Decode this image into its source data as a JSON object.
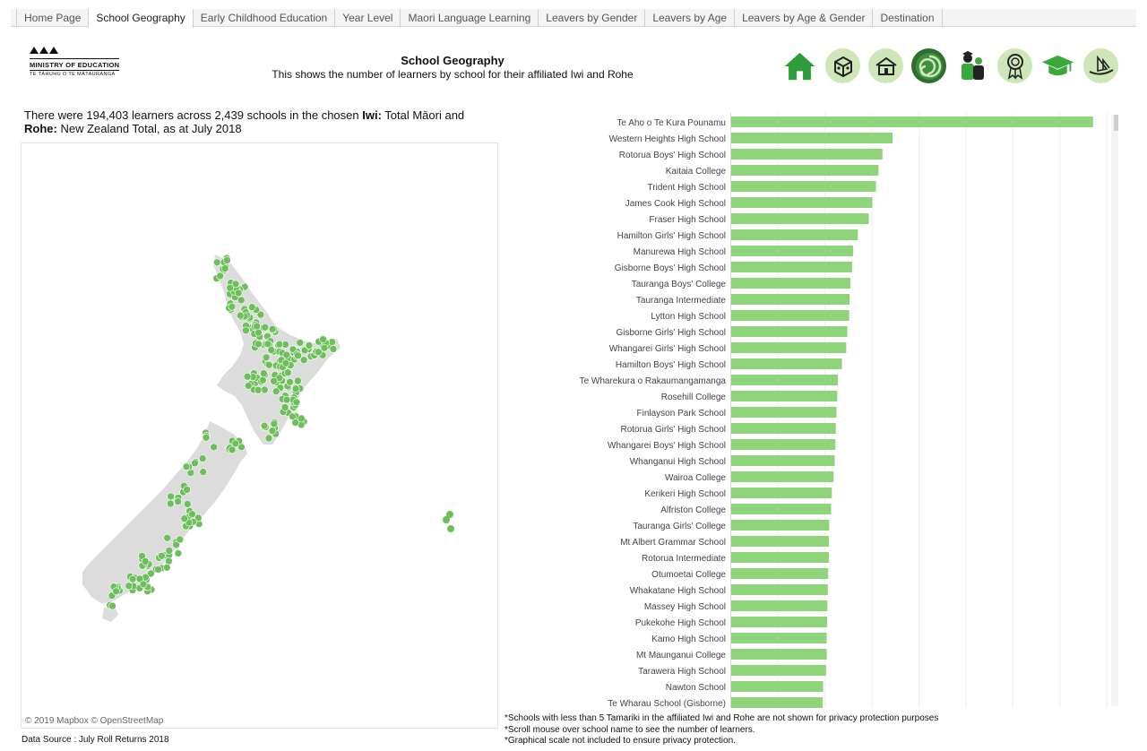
{
  "tabs": [
    {
      "label": "Home Page",
      "active": false
    },
    {
      "label": "School Geography",
      "active": true
    },
    {
      "label": "Early Childhood Education",
      "active": false
    },
    {
      "label": "Year Level",
      "active": false
    },
    {
      "label": "Maori Language Learning",
      "active": false
    },
    {
      "label": "Leavers by Gender",
      "active": false
    },
    {
      "label": "Leavers by Age",
      "active": false
    },
    {
      "label": "Leavers by Age & Gender",
      "active": false
    },
    {
      "label": "Destination",
      "active": false
    }
  ],
  "logo": {
    "name": "MINISTRY OF EDUCATION",
    "sub": "TE TĀHUHU O TE MĀTAURANGA"
  },
  "header": {
    "title": "School Geography",
    "subtitle": "This shows the number of learners by school for their affiliated Iwi and Rohe"
  },
  "nav_icons": [
    "home-icon",
    "blocks-icon",
    "school-house-icon",
    "koru-icon",
    "people-icon",
    "award-ribbon-icon",
    "graduation-cap-icon",
    "waka-icon"
  ],
  "summary": {
    "prefix": "There were 194,403 learners across 2,439 schools in the chosen ",
    "iwi_label": "Iwi:",
    "iwi_value": " Total Māori and ",
    "rohe_label": "Rohe:",
    "rohe_value": " New Zealand Total, as at July 2018"
  },
  "map": {
    "attribution": "© 2019 Mapbox  © OpenStreetMap"
  },
  "data_source": "Data Source : July Roll Returns 2018",
  "colors": {
    "bar": "#8fd47a",
    "dot": "#6cbf5a",
    "land": "#dcdcdc",
    "accent": "#3aa83a"
  },
  "chart_data": {
    "type": "bar",
    "orientation": "horizontal",
    "categories": [
      "Te Aho o Te Kura Pounamu",
      "Western Heights High School",
      "Rotorua Boys' High School",
      "Kaitaia College",
      "Trident High School",
      "James Cook High School",
      "Fraser High School",
      "Hamilton Girls' High School",
      "Manurewa High School",
      "Gisborne Boys' High School",
      "Tauranga Boys' College",
      "Tauranga Intermediate",
      "Lytton High School",
      "Gisborne Girls' High School",
      "Whangarei Girls' High School",
      "Hamilton Boys' High School",
      "Te Wharekura o Rakaumangamanga",
      "Rosehill College",
      "Finlayson Park School",
      "Rotorua Girls' High School",
      "Whangarei Boys' High School",
      "Whanganui High School",
      "Wairoa College",
      "Kerikeri High School",
      "Alfriston College",
      "Tauranga Girls' College",
      "Mt Albert Grammar School",
      "Rotorua Intermediate",
      "Otumoetai College",
      "Whakatane High School",
      "Massey High School",
      "Pukekohe High School",
      "Kamo High School",
      "Mt Maunganui College",
      "Tarawera High School",
      "Nawton School",
      "Te Wharau School (Gisborne)"
    ],
    "values": [
      1000,
      446,
      418,
      407,
      400,
      390,
      380,
      350,
      337,
      334,
      329,
      327,
      326,
      321,
      318,
      306,
      295,
      293,
      291,
      289,
      288,
      286,
      283,
      278,
      276,
      271,
      270,
      270,
      268,
      267,
      266,
      265,
      264,
      264,
      262,
      254,
      253
    ],
    "xlim": [
      0,
      1040
    ],
    "grid": true,
    "tick_labels_shown": false
  },
  "map_points_note": "",
  "notes": [
    "*Schools with less than 5 Tamariki in the affiliated Iwi and Rohe are not shown for privacy protection purposes",
    "*Scroll mouse over school name to see the number of learners.",
    "*Graphical scale not included to ensure privacy protection."
  ]
}
